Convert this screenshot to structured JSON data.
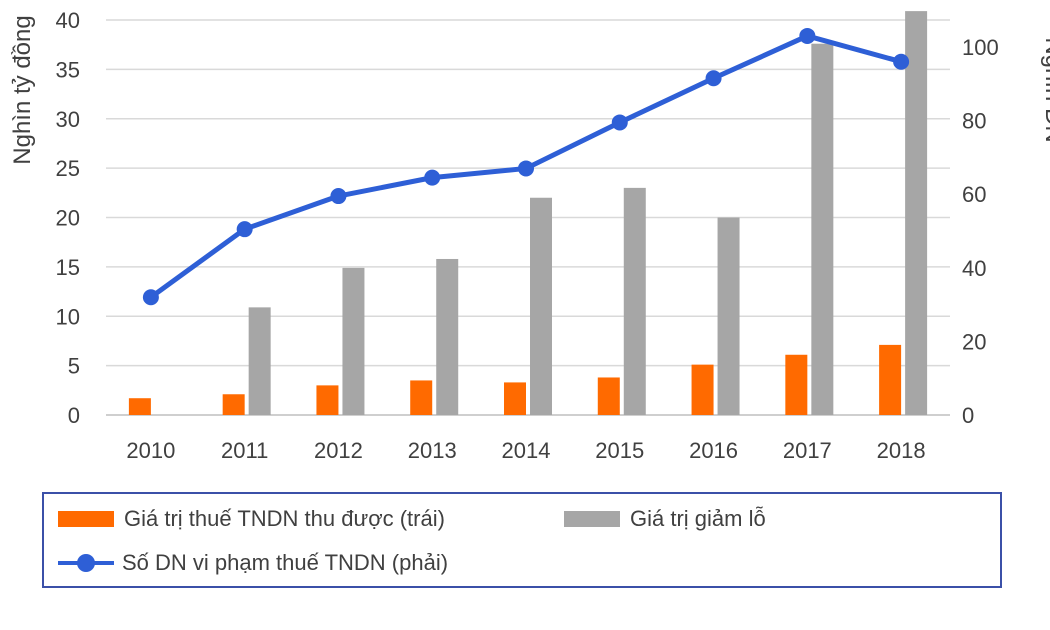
{
  "chart_data": {
    "type": "bar",
    "categories": [
      "2010",
      "2011",
      "2012",
      "2013",
      "2014",
      "2015",
      "2016",
      "2017",
      "2018"
    ],
    "series": [
      {
        "name": "Giá trị thuế TNDN thu được (trái)",
        "type": "bar",
        "axis": "left",
        "color": "#ff6a00",
        "values": [
          1.7,
          2.1,
          3.0,
          3.5,
          3.3,
          3.8,
          5.1,
          6.1,
          7.1
        ]
      },
      {
        "name": "Giá trị giảm lỗ",
        "type": "bar",
        "axis": "left",
        "color": "#a6a6a6",
        "values": [
          0,
          10.9,
          14.9,
          15.8,
          22.0,
          23.0,
          20.0,
          37.6,
          40.9
        ]
      },
      {
        "name": "Số DN vi phạm thuế TNDN (phải)",
        "type": "line",
        "axis": "right",
        "color": "#2e5fd6",
        "values": [
          32,
          50.5,
          59.5,
          64.5,
          67,
          79.5,
          91.5,
          103,
          96
        ]
      }
    ],
    "ylabel": "Nghìn tỷ đồng",
    "y2label": "Nghìn DN",
    "ylim": [
      0,
      40
    ],
    "y2lim": [
      0,
      100
    ],
    "yticks": [
      "0",
      "5",
      "10",
      "15",
      "20",
      "25",
      "30",
      "35",
      "40"
    ],
    "y2ticks": [
      "0",
      "20",
      "40",
      "60",
      "80",
      "100"
    ],
    "grid": true,
    "legend_position": "bottom"
  }
}
